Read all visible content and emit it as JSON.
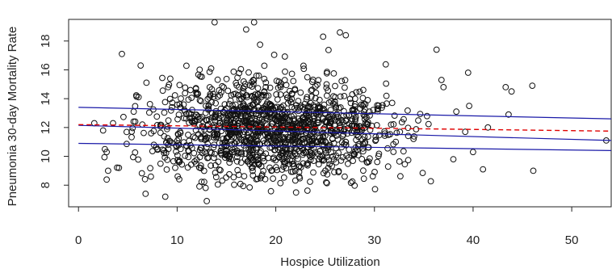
{
  "chart_data": {
    "type": "scatter",
    "title": "",
    "xlabel": "Hospice Utilization",
    "ylabel": "Pneumonia 30-day Mortality Rate",
    "xlim": [
      -1,
      54
    ],
    "ylim": [
      6.5,
      19.5
    ],
    "x_ticks": [
      0,
      10,
      20,
      30,
      40,
      50
    ],
    "y_ticks": [
      8,
      10,
      12,
      14,
      16,
      18
    ],
    "grid": false,
    "legend": "none",
    "colors": {
      "points": "#111111",
      "fit": "#e00000",
      "bands": "#1a1aa8"
    },
    "fit_line": {
      "style": "dashed",
      "x": [
        0,
        54
      ],
      "y": [
        12.2,
        11.75
      ]
    },
    "bands": [
      {
        "style": "solid",
        "x": [
          0,
          54
        ],
        "y": [
          13.4,
          12.6
        ]
      },
      {
        "style": "solid",
        "x": [
          0,
          54
        ],
        "y": [
          12.15,
          11.1
        ]
      },
      {
        "style": "solid",
        "x": [
          0,
          54
        ],
        "y": [
          10.9,
          10.4
        ]
      }
    ],
    "cloud": {
      "n": 1400,
      "x_mean": 19.5,
      "x_sd": 6.3,
      "y_mean": 11.9,
      "y_sd": 1.75
    },
    "extremes": [
      {
        "x": 1.6,
        "y": 12.3
      },
      {
        "x": 3.0,
        "y": 9.0
      },
      {
        "x": 3.5,
        "y": 12.3
      },
      {
        "x": 4.1,
        "y": 9.2
      },
      {
        "x": 4.4,
        "y": 17.1
      },
      {
        "x": 5.6,
        "y": 13.1
      },
      {
        "x": 6.3,
        "y": 16.3
      },
      {
        "x": 6.8,
        "y": 7.4
      },
      {
        "x": 8.8,
        "y": 7.2
      },
      {
        "x": 13.0,
        "y": 6.9
      },
      {
        "x": 13.8,
        "y": 19.3
      },
      {
        "x": 17.0,
        "y": 18.8
      },
      {
        "x": 17.8,
        "y": 19.3
      },
      {
        "x": 24.8,
        "y": 18.3
      },
      {
        "x": 26.5,
        "y": 18.6
      },
      {
        "x": 27.1,
        "y": 18.4
      },
      {
        "x": 36.3,
        "y": 17.4
      },
      {
        "x": 36.8,
        "y": 15.3
      },
      {
        "x": 37.0,
        "y": 14.8
      },
      {
        "x": 38.0,
        "y": 9.8
      },
      {
        "x": 38.3,
        "y": 13.1
      },
      {
        "x": 39.2,
        "y": 11.7
      },
      {
        "x": 39.5,
        "y": 15.8
      },
      {
        "x": 39.6,
        "y": 13.5
      },
      {
        "x": 40.0,
        "y": 10.3
      },
      {
        "x": 41.0,
        "y": 9.1
      },
      {
        "x": 41.5,
        "y": 12.0
      },
      {
        "x": 43.3,
        "y": 14.8
      },
      {
        "x": 43.6,
        "y": 12.9
      },
      {
        "x": 43.9,
        "y": 14.5
      },
      {
        "x": 46.0,
        "y": 14.9
      },
      {
        "x": 46.1,
        "y": 9.0
      },
      {
        "x": 53.5,
        "y": 11.1
      }
    ]
  }
}
